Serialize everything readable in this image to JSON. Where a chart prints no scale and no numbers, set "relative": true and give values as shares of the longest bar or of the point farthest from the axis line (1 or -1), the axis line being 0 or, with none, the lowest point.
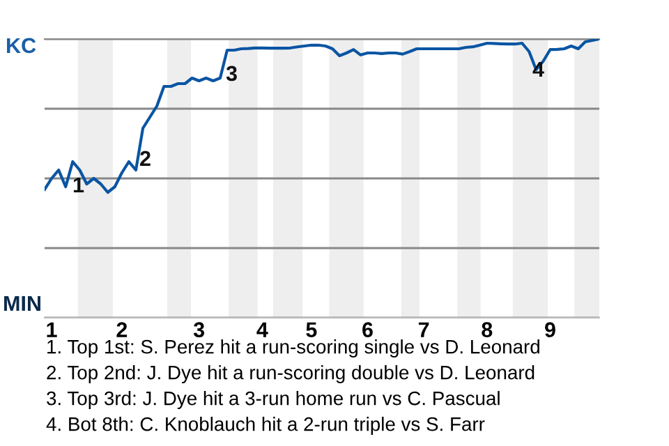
{
  "chart_data": {
    "type": "line",
    "color": "#0a55a3",
    "relative": true,
    "categories": [
      null,
      "1",
      null,
      null,
      null,
      null,
      null,
      null,
      null,
      null,
      null,
      "2",
      null,
      null,
      null,
      null,
      null,
      null,
      null,
      null,
      null,
      null,
      "3",
      null,
      null,
      null,
      null,
      null,
      null,
      null,
      null,
      "4",
      null,
      null,
      null,
      null,
      null,
      null,
      "5",
      null,
      null,
      null,
      null,
      null,
      null,
      null,
      "6",
      null,
      null,
      null,
      null,
      null,
      null,
      null,
      "7",
      null,
      null,
      null,
      null,
      null,
      null,
      null,
      null,
      "8",
      null,
      null,
      null,
      null,
      null,
      null,
      null,
      null,
      "9",
      null,
      null,
      null,
      null,
      null,
      null,
      null
    ],
    "values": [
      0.46,
      0.5,
      0.53,
      0.47,
      0.56,
      0.53,
      0.48,
      0.5,
      0.48,
      0.45,
      0.47,
      0.52,
      0.56,
      0.53,
      0.68,
      0.72,
      0.76,
      0.83,
      0.83,
      0.84,
      0.84,
      0.86,
      0.85,
      0.86,
      0.85,
      0.86,
      0.96,
      0.96,
      0.965,
      0.966,
      0.968,
      0.968,
      0.967,
      0.967,
      0.967,
      0.968,
      0.972,
      0.975,
      0.978,
      0.978,
      0.975,
      0.965,
      0.94,
      0.95,
      0.962,
      0.943,
      0.95,
      0.95,
      0.948,
      0.95,
      0.95,
      0.946,
      0.955,
      0.965,
      0.965,
      0.965,
      0.965,
      0.965,
      0.965,
      0.965,
      0.97,
      0.972,
      0.978,
      0.985,
      0.984,
      0.983,
      0.982,
      0.982,
      0.985,
      0.955,
      0.89,
      0.92,
      0.962,
      0.963,
      0.965,
      0.975,
      0.965,
      0.99,
      0.995,
      1
    ],
    "grid": "y",
    "marker": "none",
    "line_style": "solid",
    "annotations": [
      "KC",
      "MIN",
      "1",
      "2",
      "3",
      "4",
      "1. Top 1st: S. Perez hit a run-scoring single vs D. Leonard",
      "2. Top 2nd: J. Dye hit a run-scoring double vs D. Leonard",
      "3. Top 3rd: J. Dye hit a 3-run home run vs C. Pascual",
      "4. Bot 8th: C. Knoblauch hit a 2-run triple vs S. Farr"
    ]
  }
}
